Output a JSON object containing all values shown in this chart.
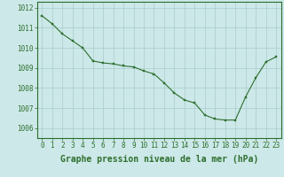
{
  "x": [
    0,
    1,
    2,
    3,
    4,
    5,
    6,
    7,
    8,
    9,
    10,
    11,
    12,
    13,
    14,
    15,
    16,
    17,
    18,
    19,
    20,
    21,
    22,
    23
  ],
  "y": [
    1011.6,
    1011.2,
    1010.7,
    1010.35,
    1010.0,
    1009.35,
    1009.25,
    1009.2,
    1009.1,
    1009.05,
    1008.85,
    1008.7,
    1008.25,
    1007.75,
    1007.4,
    1007.25,
    1006.65,
    1006.45,
    1006.4,
    1006.4,
    1007.55,
    1008.5,
    1009.3,
    1009.55
  ],
  "line_color": "#2d6e2d",
  "marker_color": "#2d6e2d",
  "bg_color": "#cce8e8",
  "grid_color": "#aacccc",
  "axis_color": "#2d6e2d",
  "tick_label_color": "#2d6e2d",
  "xlabel": "Graphe pression niveau de la mer (hPa)",
  "ylim": [
    1005.5,
    1012.3
  ],
  "yticks": [
    1006,
    1007,
    1008,
    1009,
    1010,
    1011,
    1012
  ],
  "xticks": [
    0,
    1,
    2,
    3,
    4,
    5,
    6,
    7,
    8,
    9,
    10,
    11,
    12,
    13,
    14,
    15,
    16,
    17,
    18,
    19,
    20,
    21,
    22,
    23
  ],
  "font_size": 5.5,
  "xlabel_font_size": 7.0,
  "marker_size": 2.0,
  "line_width": 0.8
}
